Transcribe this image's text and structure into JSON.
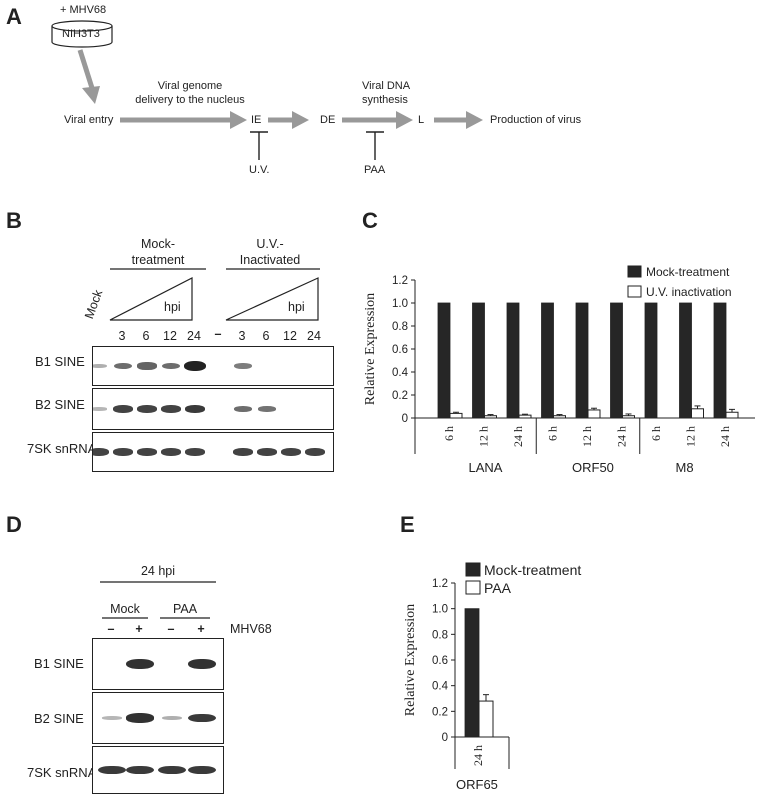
{
  "panels": {
    "A": {
      "letter": "A",
      "cell_label_top": "+ MHV68",
      "cell_line": "NIH3T3",
      "steps": {
        "viral_entry": "Viral entry",
        "delivery": "Viral genome\ndelivery to the nucleus",
        "ie": "IE",
        "de": "DE",
        "dna_synthesis": "Viral DNA\nsynthesis",
        "l": "L",
        "production": "Production of virus"
      },
      "inhibitors": {
        "uv": "U.V.",
        "paa": "PAA"
      }
    },
    "B": {
      "letter": "B",
      "group1": "Mock-\ntreatment",
      "group2": "U.V.-\nInactivated",
      "hpi1": "hpi",
      "hpi2": "hpi",
      "mock_lane": "Mock",
      "lanes1": [
        "3",
        "6",
        "12",
        "24"
      ],
      "dash": "–",
      "lanes2": [
        "3",
        "6",
        "12",
        "24"
      ],
      "rows": [
        "B1 SINE",
        "B2 SINE",
        "7SK snRNA"
      ],
      "blot_levels": {
        "b1": [
          0.15,
          0.55,
          0.6,
          0.55,
          1.0,
          0.0,
          0.45,
          0.0,
          0.0,
          0.0
        ],
        "b2": [
          0.1,
          0.8,
          0.8,
          0.8,
          0.85,
          0.0,
          0.55,
          0.5,
          0.0,
          0.0
        ],
        "sk7": [
          0.8,
          0.8,
          0.8,
          0.8,
          0.8,
          0.0,
          0.8,
          0.8,
          0.8,
          0.8
        ]
      }
    },
    "C": {
      "letter": "C",
      "chart_data": {
        "type": "bar",
        "ylabel": "Relative Expression",
        "ylim": [
          0,
          1.2
        ],
        "yticks": [
          "0",
          "0.2",
          "0.4",
          "0.6",
          "0.8",
          "1.0",
          "1.2"
        ],
        "categories": [
          "6 h",
          "12 h",
          "24 h",
          "6 h",
          "12 h",
          "24 h",
          "6 h",
          "12 h",
          "24 h"
        ],
        "groups": [
          "LANA",
          "ORF50",
          "M8"
        ],
        "series": [
          {
            "name": "Mock-treatment",
            "color": "#262626",
            "values": [
              1,
              1,
              1,
              1,
              1,
              1,
              1,
              1,
              1
            ]
          },
          {
            "name": "U.V. inactivation",
            "color": "#ffffff",
            "values": [
              0.04,
              0.02,
              0.025,
              0.02,
              0.07,
              0.02,
              0.0,
              0.08,
              0.05
            ],
            "errors": [
              0.01,
              0.01,
              0.008,
              0.01,
              0.015,
              0.015,
              0.0,
              0.025,
              0.025
            ]
          }
        ],
        "legend": "top-right"
      }
    },
    "D": {
      "letter": "D",
      "time": "24 hpi",
      "group1": "Mock",
      "group2": "PAA",
      "lane_signs": [
        "–",
        "+",
        "–",
        "+"
      ],
      "virus": "MHV68",
      "rows": [
        "B1 SINE",
        "B2 SINE",
        "7SK snRNA"
      ],
      "blot_levels": {
        "b1": [
          0.0,
          0.9,
          0.0,
          0.9
        ],
        "b2": [
          0.1,
          0.9,
          0.15,
          0.85
        ],
        "sk7": [
          0.85,
          0.85,
          0.85,
          0.85
        ]
      }
    },
    "E": {
      "letter": "E",
      "chart_data": {
        "type": "bar",
        "ylabel": "Relative Expression",
        "ylim": [
          0,
          1.2
        ],
        "yticks": [
          "0",
          "0.2",
          "0.4",
          "0.6",
          "0.8",
          "1.0",
          "1.2"
        ],
        "categories": [
          "24 h"
        ],
        "group": "ORF65",
        "series": [
          {
            "name": "Mock-treatment",
            "color": "#262626",
            "values": [
              1.0
            ]
          },
          {
            "name": "PAA",
            "color": "#ffffff",
            "values": [
              0.28
            ],
            "errors": [
              0.05
            ]
          }
        ],
        "legend": "top-right"
      }
    }
  }
}
